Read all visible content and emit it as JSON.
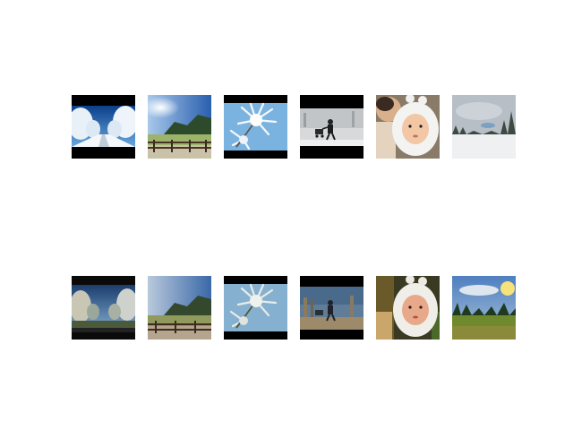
{
  "grid": {
    "rows": [
      {
        "name": "original-row",
        "images": [
          {
            "name": "snowy-tree-road-image"
          },
          {
            "name": "winter-meadow-fence-image"
          },
          {
            "name": "frosted-pine-branch-image"
          },
          {
            "name": "person-pushing-stroller-in-snow-image"
          },
          {
            "name": "baby-in-white-hood-image"
          },
          {
            "name": "snowy-field-treeline-image"
          }
        ]
      },
      {
        "name": "reconstructed-row",
        "images": [
          {
            "name": "snowy-tree-road-reconstruction-image"
          },
          {
            "name": "winter-meadow-fence-reconstruction-image"
          },
          {
            "name": "frosted-pine-branch-reconstruction-image"
          },
          {
            "name": "person-pushing-stroller-reconstruction-image"
          },
          {
            "name": "baby-in-white-hood-reconstruction-image"
          },
          {
            "name": "sunny-meadow-reconstruction-image"
          }
        ]
      }
    ]
  }
}
